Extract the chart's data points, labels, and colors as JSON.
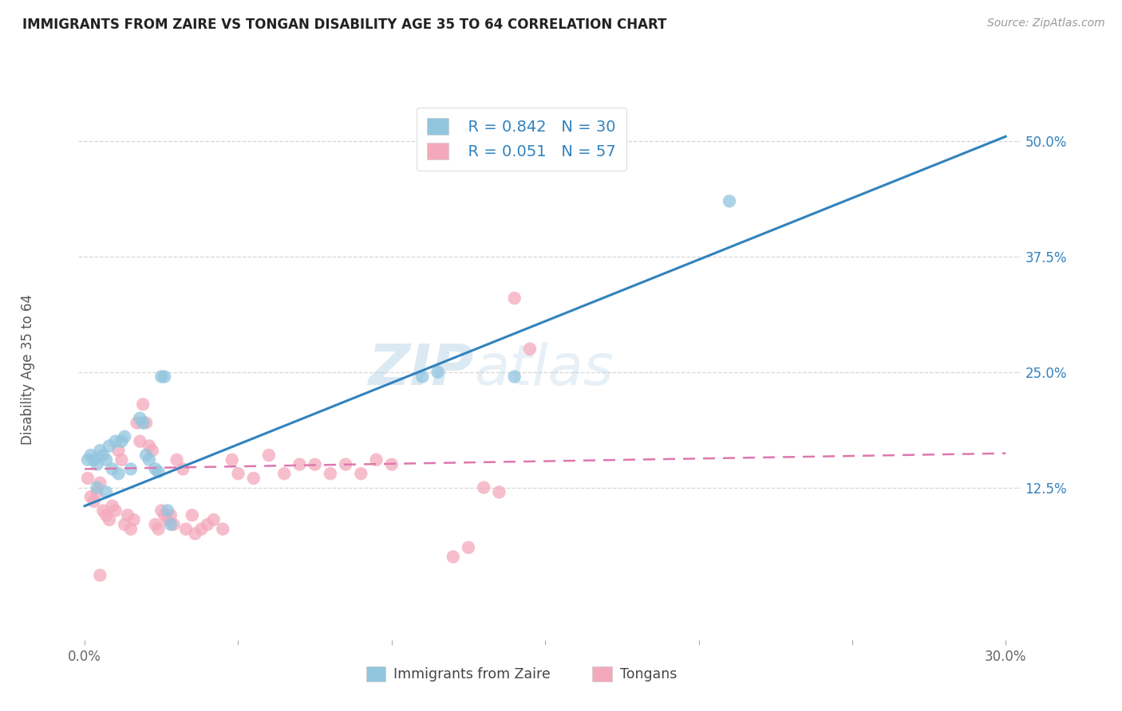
{
  "title": "IMMIGRANTS FROM ZAIRE VS TONGAN DISABILITY AGE 35 TO 64 CORRELATION CHART",
  "source": "Source: ZipAtlas.com",
  "ylabel": "Disability Age 35 to 64",
  "legend_label_blue": "Immigrants from Zaire",
  "legend_label_pink": "Tongans",
  "R_blue": 0.842,
  "N_blue": 30,
  "R_pink": 0.051,
  "N_pink": 57,
  "xlim": [
    -0.002,
    0.305
  ],
  "ylim": [
    -0.04,
    0.545
  ],
  "yticks": [
    0.125,
    0.25,
    0.375,
    0.5
  ],
  "ytick_labels": [
    "12.5%",
    "25.0%",
    "37.5%",
    "50.0%"
  ],
  "xticks": [
    0.0,
    0.05,
    0.1,
    0.15,
    0.2,
    0.25,
    0.3
  ],
  "xtick_labels": [
    "0.0%",
    "",
    "",
    "",
    "",
    "",
    "30.0%"
  ],
  "grid_color": "#cccccc",
  "watermark_zip": "ZIP",
  "watermark_atlas": "atlas",
  "blue_color": "#92c5de",
  "pink_color": "#f4a9bb",
  "blue_line_color": "#3182bd",
  "pink_line_color": "#de77ae",
  "blue_scatter": [
    [
      0.001,
      0.155
    ],
    [
      0.002,
      0.16
    ],
    [
      0.003,
      0.155
    ],
    [
      0.004,
      0.15
    ],
    [
      0.005,
      0.165
    ],
    [
      0.006,
      0.16
    ],
    [
      0.007,
      0.155
    ],
    [
      0.008,
      0.17
    ],
    [
      0.009,
      0.145
    ],
    [
      0.01,
      0.175
    ],
    [
      0.011,
      0.14
    ],
    [
      0.012,
      0.175
    ],
    [
      0.013,
      0.18
    ],
    [
      0.015,
      0.145
    ],
    [
      0.018,
      0.2
    ],
    [
      0.019,
      0.195
    ],
    [
      0.02,
      0.16
    ],
    [
      0.021,
      0.155
    ],
    [
      0.023,
      0.145
    ],
    [
      0.024,
      0.142
    ],
    [
      0.025,
      0.245
    ],
    [
      0.026,
      0.245
    ],
    [
      0.027,
      0.1
    ],
    [
      0.028,
      0.085
    ],
    [
      0.11,
      0.245
    ],
    [
      0.115,
      0.25
    ],
    [
      0.14,
      0.245
    ],
    [
      0.21,
      0.435
    ],
    [
      0.004,
      0.125
    ],
    [
      0.007,
      0.12
    ]
  ],
  "pink_scatter": [
    [
      0.001,
      0.135
    ],
    [
      0.002,
      0.115
    ],
    [
      0.003,
      0.11
    ],
    [
      0.004,
      0.12
    ],
    [
      0.005,
      0.13
    ],
    [
      0.006,
      0.1
    ],
    [
      0.007,
      0.095
    ],
    [
      0.008,
      0.09
    ],
    [
      0.009,
      0.105
    ],
    [
      0.01,
      0.1
    ],
    [
      0.011,
      0.165
    ],
    [
      0.012,
      0.155
    ],
    [
      0.013,
      0.085
    ],
    [
      0.014,
      0.095
    ],
    [
      0.015,
      0.08
    ],
    [
      0.016,
      0.09
    ],
    [
      0.017,
      0.195
    ],
    [
      0.018,
      0.175
    ],
    [
      0.019,
      0.215
    ],
    [
      0.02,
      0.195
    ],
    [
      0.021,
      0.17
    ],
    [
      0.022,
      0.165
    ],
    [
      0.023,
      0.085
    ],
    [
      0.024,
      0.08
    ],
    [
      0.025,
      0.1
    ],
    [
      0.026,
      0.095
    ],
    [
      0.027,
      0.09
    ],
    [
      0.028,
      0.095
    ],
    [
      0.029,
      0.085
    ],
    [
      0.03,
      0.155
    ],
    [
      0.032,
      0.145
    ],
    [
      0.033,
      0.08
    ],
    [
      0.035,
      0.095
    ],
    [
      0.036,
      0.075
    ],
    [
      0.038,
      0.08
    ],
    [
      0.04,
      0.085
    ],
    [
      0.042,
      0.09
    ],
    [
      0.045,
      0.08
    ],
    [
      0.048,
      0.155
    ],
    [
      0.05,
      0.14
    ],
    [
      0.055,
      0.135
    ],
    [
      0.06,
      0.16
    ],
    [
      0.065,
      0.14
    ],
    [
      0.07,
      0.15
    ],
    [
      0.075,
      0.15
    ],
    [
      0.08,
      0.14
    ],
    [
      0.085,
      0.15
    ],
    [
      0.09,
      0.14
    ],
    [
      0.095,
      0.155
    ],
    [
      0.1,
      0.15
    ],
    [
      0.13,
      0.125
    ],
    [
      0.135,
      0.12
    ],
    [
      0.14,
      0.33
    ],
    [
      0.145,
      0.275
    ],
    [
      0.005,
      0.03
    ],
    [
      0.12,
      0.05
    ],
    [
      0.125,
      0.06
    ]
  ],
  "blue_line_x": [
    0.0,
    0.3
  ],
  "blue_line_y": [
    0.105,
    0.505
  ],
  "pink_line_x": [
    0.0,
    0.3
  ],
  "pink_line_y": [
    0.145,
    0.162
  ],
  "background_color": "#ffffff",
  "title_color": "#222222",
  "axis_label_color": "#555555",
  "tick_color_blue": "#3182bd",
  "tick_color_default": "#666666"
}
